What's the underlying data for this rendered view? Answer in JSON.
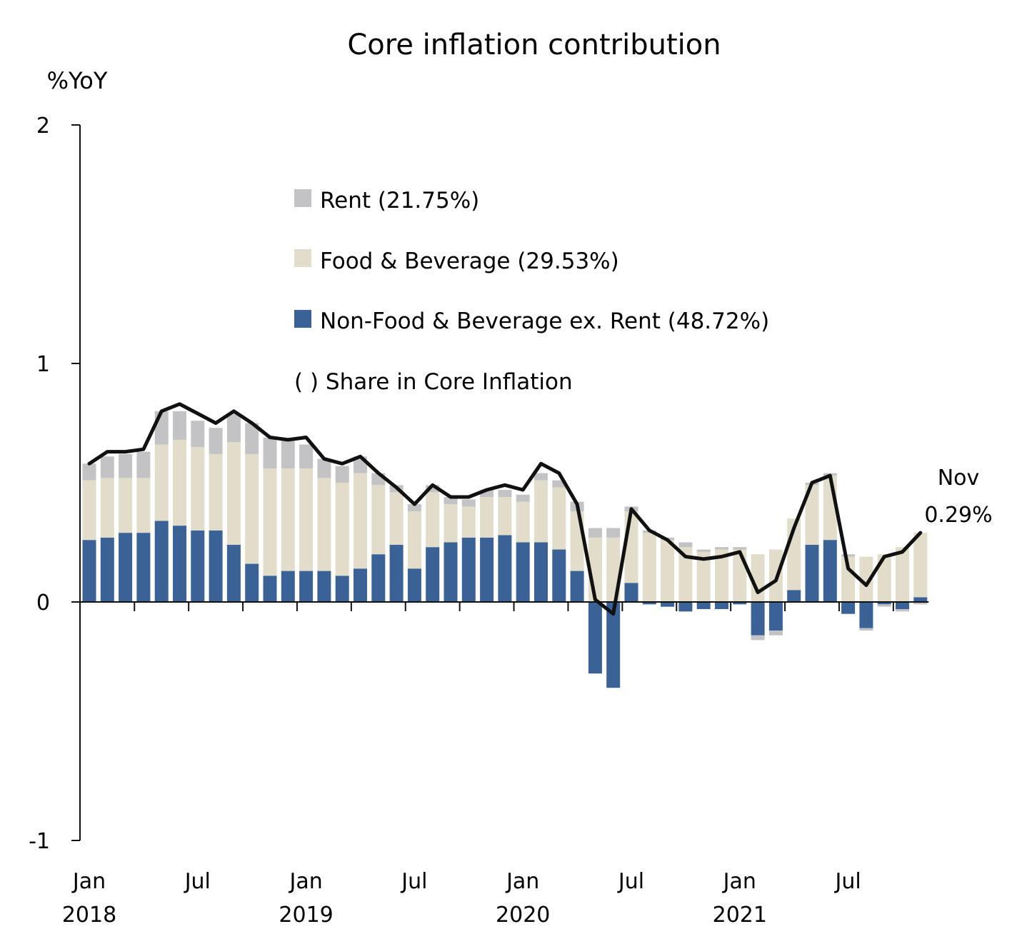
{
  "chart_data": {
    "type": "bar",
    "title": "Core inflation contribution",
    "ylabel": "%YoY",
    "xlabel": "",
    "ylim": [
      -1,
      2
    ],
    "yticks": [
      "2",
      "1",
      "0",
      "-1"
    ],
    "stacked": true,
    "x_tick_labels": [
      {
        "month": "Jan",
        "year": "2018"
      },
      {
        "month": "Jul",
        "year": ""
      },
      {
        "month": "Jan",
        "year": "2019"
      },
      {
        "month": "Jul",
        "year": ""
      },
      {
        "month": "Jan",
        "year": "2020"
      },
      {
        "month": "Jul",
        "year": ""
      },
      {
        "month": "Jan",
        "year": "2021"
      },
      {
        "month": "Jul",
        "year": ""
      }
    ],
    "categories": [
      "2018-01",
      "2018-02",
      "2018-03",
      "2018-04",
      "2018-05",
      "2018-06",
      "2018-07",
      "2018-08",
      "2018-09",
      "2018-10",
      "2018-11",
      "2018-12",
      "2019-01",
      "2019-02",
      "2019-03",
      "2019-04",
      "2019-05",
      "2019-06",
      "2019-07",
      "2019-08",
      "2019-09",
      "2019-10",
      "2019-11",
      "2019-12",
      "2020-01",
      "2020-02",
      "2020-03",
      "2020-04",
      "2020-05",
      "2020-06",
      "2020-07",
      "2020-08",
      "2020-09",
      "2020-10",
      "2020-11",
      "2020-12",
      "2021-01",
      "2021-02",
      "2021-03",
      "2021-04",
      "2021-05",
      "2021-06",
      "2021-07",
      "2021-08",
      "2021-09",
      "2021-10",
      "2021-11"
    ],
    "series": [
      {
        "name": "Non-Food & Beverage ex. Rent (48.72%)",
        "color": "#3a6296",
        "values": [
          0.26,
          0.27,
          0.29,
          0.29,
          0.34,
          0.32,
          0.3,
          0.3,
          0.24,
          0.16,
          0.11,
          0.13,
          0.13,
          0.13,
          0.11,
          0.14,
          0.2,
          0.24,
          0.14,
          0.23,
          0.25,
          0.27,
          0.27,
          0.28,
          0.25,
          0.25,
          0.22,
          0.13,
          -0.3,
          -0.36,
          0.08,
          -0.01,
          -0.02,
          -0.04,
          -0.03,
          -0.03,
          -0.01,
          -0.14,
          -0.12,
          0.05,
          0.24,
          0.26,
          -0.05,
          -0.11,
          -0.01,
          -0.03,
          0.02
        ]
      },
      {
        "name": "Food & Beverage (29.53%)",
        "color": "#e2ddca",
        "values": [
          0.25,
          0.25,
          0.23,
          0.23,
          0.32,
          0.36,
          0.35,
          0.32,
          0.43,
          0.46,
          0.45,
          0.43,
          0.43,
          0.39,
          0.39,
          0.4,
          0.29,
          0.22,
          0.24,
          0.23,
          0.16,
          0.13,
          0.17,
          0.16,
          0.17,
          0.26,
          0.26,
          0.25,
          0.27,
          0.27,
          0.3,
          0.29,
          0.26,
          0.23,
          0.21,
          0.22,
          0.22,
          0.2,
          0.22,
          0.3,
          0.25,
          0.27,
          0.19,
          0.19,
          0.2,
          0.23,
          0.27
        ]
      },
      {
        "name": "Rent (21.75%)",
        "color": "#c3c3c5",
        "values": [
          0.07,
          0.09,
          0.1,
          0.11,
          0.14,
          0.12,
          0.11,
          0.11,
          0.12,
          0.13,
          0.13,
          0.12,
          0.1,
          0.08,
          0.07,
          0.07,
          0.05,
          0.03,
          0.03,
          0.03,
          0.03,
          0.03,
          0.03,
          0.03,
          0.03,
          0.03,
          0.03,
          0.04,
          0.04,
          0.04,
          0.02,
          0.01,
          0.01,
          0.02,
          0.01,
          0.01,
          0.01,
          -0.02,
          -0.02,
          0.0,
          0.01,
          0.01,
          0.01,
          -0.01,
          -0.01,
          -0.01,
          -0.01
        ]
      }
    ],
    "line": {
      "name": "Core inflation",
      "color": "#111111",
      "values": [
        0.58,
        0.63,
        0.63,
        0.64,
        0.8,
        0.83,
        0.79,
        0.75,
        0.8,
        0.75,
        0.69,
        0.68,
        0.69,
        0.6,
        0.58,
        0.61,
        0.54,
        0.48,
        0.41,
        0.49,
        0.44,
        0.44,
        0.47,
        0.49,
        0.47,
        0.58,
        0.54,
        0.41,
        0.01,
        -0.05,
        0.39,
        0.3,
        0.26,
        0.19,
        0.18,
        0.19,
        0.21,
        0.04,
        0.09,
        0.31,
        0.5,
        0.53,
        0.14,
        0.07,
        0.19,
        0.21,
        0.29
      ]
    },
    "annotation": {
      "month": "Nov",
      "value": "0.29%"
    },
    "legend_note": "( ) Share in Core Inflation",
    "legend_placement": "top-center",
    "grid": false
  }
}
